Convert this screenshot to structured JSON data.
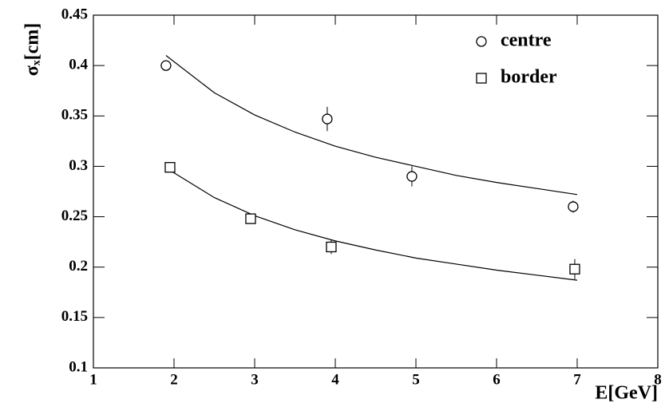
{
  "chart_data": {
    "type": "scatter",
    "xlabel": "E[GeV]",
    "ylabel": "σₓ[cm]",
    "xlim": [
      1,
      8
    ],
    "xticks": [
      1,
      2,
      3,
      4,
      5,
      6,
      7,
      8
    ],
    "ylim": [
      0.1,
      0.45
    ],
    "yticks": [
      0.1,
      0.15,
      0.2,
      0.25,
      0.3,
      0.35,
      0.4,
      0.45
    ],
    "legend": "top-right",
    "series": [
      {
        "name": "centre",
        "marker": "circle",
        "color": "#000000",
        "x": [
          1.9,
          3.9,
          4.95,
          6.95
        ],
        "values": [
          0.4,
          0.347,
          0.29,
          0.26
        ],
        "errors": [
          0.005,
          0.012,
          0.01,
          0.006
        ]
      },
      {
        "name": "border",
        "marker": "square",
        "color": "#000000",
        "x": [
          1.95,
          2.95,
          3.95,
          6.97
        ],
        "values": [
          0.299,
          0.248,
          0.22,
          0.198
        ],
        "errors": [
          0.005,
          0.004,
          0.007,
          0.01
        ]
      }
    ],
    "fits": [
      {
        "x": [
          1.9,
          2.5,
          3,
          3.5,
          4,
          4.5,
          5,
          5.5,
          6,
          6.5,
          7
        ],
        "values": [
          0.41,
          0.373,
          0.351,
          0.334,
          0.32,
          0.309,
          0.3,
          0.291,
          0.284,
          0.278,
          0.272
        ]
      },
      {
        "x": [
          1.95,
          2.5,
          3,
          3.5,
          4,
          4.5,
          5,
          5.5,
          6,
          6.5,
          7
        ],
        "values": [
          0.296,
          0.269,
          0.251,
          0.237,
          0.226,
          0.217,
          0.209,
          0.203,
          0.197,
          0.192,
          0.187
        ]
      }
    ]
  }
}
